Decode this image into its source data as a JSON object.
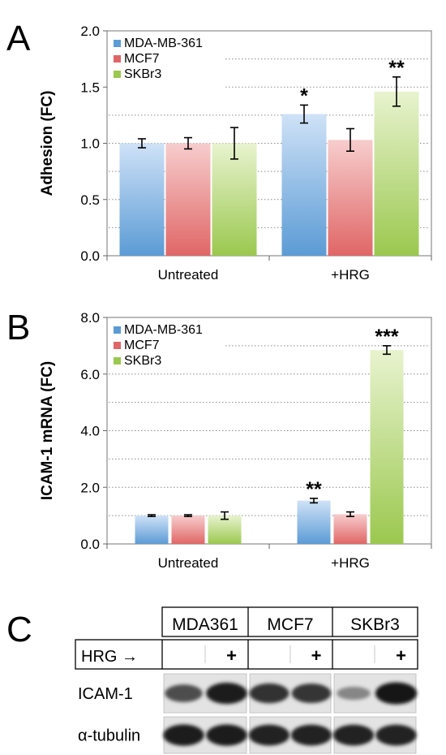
{
  "panels": {
    "a": {
      "letter": "A"
    },
    "b": {
      "letter": "B"
    },
    "c": {
      "letter": "C"
    }
  },
  "colors": {
    "MDA-MB-361": "#5b9bd5",
    "MCF7": "#e06666",
    "SKBr3": "#9bc84f"
  },
  "chart_data": [
    {
      "type": "bar",
      "panel": "A",
      "title": "",
      "xlabel": "",
      "ylabel": "Adhesion (FC)",
      "categories": [
        "Untreated",
        "+HRG"
      ],
      "ylim": [
        0,
        2.0
      ],
      "yticks": [
        "0.0",
        "0.5",
        "1.0",
        "1.5",
        "2.0"
      ],
      "grid": "dotted horizontal",
      "legend": "top-left",
      "series": [
        {
          "name": "MDA-MB-361",
          "values": [
            1.0,
            1.26
          ],
          "errors": [
            0.04,
            0.08
          ],
          "sig": [
            "",
            "*"
          ]
        },
        {
          "name": "MCF7",
          "values": [
            1.0,
            1.03
          ],
          "errors": [
            0.05,
            0.1
          ],
          "sig": [
            "",
            ""
          ]
        },
        {
          "name": "SKBr3",
          "values": [
            1.0,
            1.46
          ],
          "errors": [
            0.14,
            0.13
          ],
          "sig": [
            "",
            "**"
          ]
        }
      ]
    },
    {
      "type": "bar",
      "panel": "B",
      "title": "",
      "xlabel": "",
      "ylabel": "ICAM-1 mRNA (FC)",
      "categories": [
        "Untreated",
        "+HRG"
      ],
      "ylim": [
        0,
        8.0
      ],
      "yticks": [
        "0.0",
        "2.0",
        "4.0",
        "6.0",
        "8.0"
      ],
      "grid": "dotted horizontal",
      "legend": "top-left",
      "series": [
        {
          "name": "MDA-MB-361",
          "values": [
            1.0,
            1.53
          ],
          "errors": [
            0.03,
            0.08
          ],
          "sig": [
            "",
            "**"
          ]
        },
        {
          "name": "MCF7",
          "values": [
            1.0,
            1.05
          ],
          "errors": [
            0.03,
            0.08
          ],
          "sig": [
            "",
            ""
          ]
        },
        {
          "name": "SKBr3",
          "values": [
            1.0,
            6.85
          ],
          "errors": [
            0.13,
            0.15
          ],
          "sig": [
            "",
            "***"
          ]
        }
      ]
    },
    {
      "type": "table",
      "panel": "C",
      "columns": [
        "MDA361",
        "MCF7",
        "SKBr3"
      ],
      "treatment_label": "HRG →",
      "treatment_marks": [
        "",
        "+",
        "",
        "+",
        "",
        "+"
      ],
      "rows": [
        {
          "label": "ICAM-1",
          "band_intensity": [
            0.65,
            0.9,
            0.8,
            0.78,
            0.35,
            0.95
          ]
        },
        {
          "label": "α-tubulin",
          "band_intensity": [
            0.9,
            0.9,
            0.88,
            0.88,
            0.88,
            0.88
          ]
        }
      ]
    }
  ]
}
